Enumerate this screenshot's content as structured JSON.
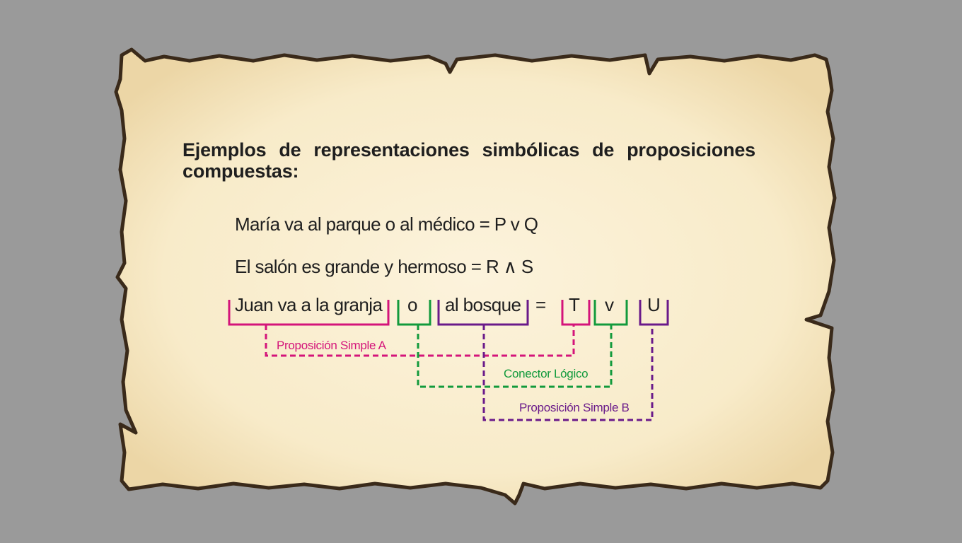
{
  "heading": "Ejemplos de representaciones simbólicas de proposiciones compuestas:",
  "examples": [
    "María va al parque o al médico = P v Q",
    "El salón es grande y hermoso = R ∧ S"
  ],
  "breakdown": {
    "tokens": [
      "Juan va a la granja",
      "o",
      "al bosque",
      "=",
      "T",
      "v",
      "U"
    ],
    "labels": {
      "simple_a": "Proposición Simple A",
      "connector": "Conector Lógico",
      "simple_b": "Proposición Simple B"
    }
  },
  "colors": {
    "simple_a": "#d4147a",
    "connector": "#129a3c",
    "simple_b": "#6a1a8a",
    "parchment": "#fbf1d6",
    "border": "#3a2a1a"
  }
}
